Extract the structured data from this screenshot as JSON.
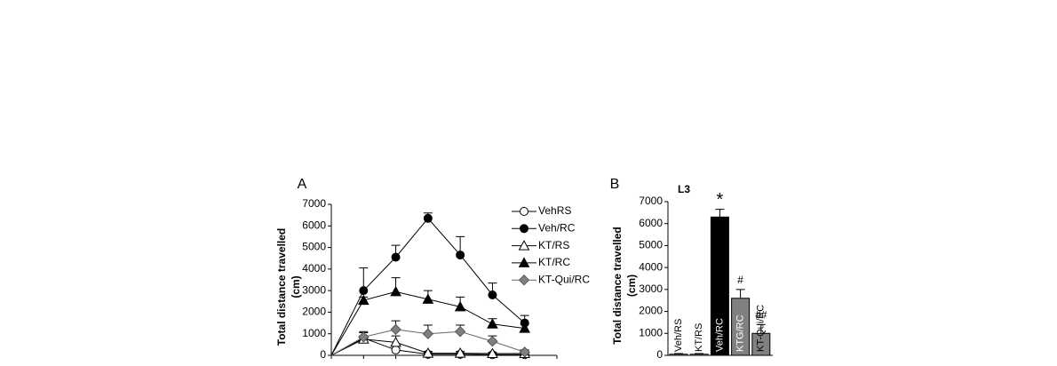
{
  "chart_data": [
    {
      "type": "line",
      "panel_label": "A",
      "ylabel": [
        "Total distance travelled",
        "(cm)"
      ],
      "categories": [
        null,
        null,
        null,
        null,
        null,
        null,
        null
      ],
      "ylim": [
        0,
        7000
      ],
      "yticks": [
        0,
        1000,
        2000,
        3000,
        4000,
        5000,
        6000,
        7000
      ],
      "series": [
        {
          "name": "VehRS",
          "color": "#000000",
          "marker": "circle",
          "fill": "#ffffff",
          "values": [
            0,
            800,
            250,
            50,
            50,
            30,
            30
          ],
          "errors": [
            150,
            250,
            80,
            80,
            60,
            60,
            50
          ]
        },
        {
          "name": "Veh/RC",
          "color": "#000000",
          "marker": "circle",
          "fill": "#000000",
          "values": [
            0,
            3000,
            4550,
            6350,
            4650,
            2800,
            1500
          ],
          "errors": [
            0,
            1050,
            550,
            250,
            850,
            550,
            350
          ]
        },
        {
          "name": "KT/RS",
          "color": "#000000",
          "marker": "triangle",
          "fill": "#ffffff",
          "values": [
            0,
            750,
            600,
            100,
            100,
            80,
            80
          ],
          "errors": [
            0,
            150,
            300,
            80,
            80,
            60,
            60
          ]
        },
        {
          "name": "KT/RC",
          "color": "#000000",
          "marker": "triangle",
          "fill": "#000000",
          "values": [
            0,
            2550,
            2950,
            2600,
            2250,
            1450,
            1250
          ],
          "errors": [
            0,
            150,
            650,
            400,
            450,
            250,
            200
          ]
        },
        {
          "name": "KT-Qui/RC",
          "color": "#808080",
          "marker": "diamond",
          "fill": "#808080",
          "values": [
            0,
            850,
            1200,
            1000,
            1100,
            650,
            150
          ],
          "errors": [
            0,
            250,
            400,
            400,
            300,
            250,
            100
          ]
        }
      ]
    },
    {
      "type": "bar",
      "panel_label": "B",
      "title": "L3",
      "ylabel": [
        "Total distance travelled",
        "(cm)"
      ],
      "categories": [
        "Veh/RS",
        "KT/RS",
        "Veh/RC",
        "KTG/RC",
        "KT-Qui/RC"
      ],
      "values": [
        50,
        50,
        6300,
        2600,
        1000
      ],
      "errors": [
        30,
        30,
        350,
        400,
        400
      ],
      "colors": [
        "#ffffff",
        "#ffffff",
        "#000000",
        "#808080",
        "#808080"
      ],
      "label_colors": [
        "#000000",
        "#000000",
        "#ffffff",
        "#ffffff",
        "#000000"
      ],
      "annotations": [
        null,
        null,
        "*",
        "#",
        "##"
      ],
      "ylim": [
        0,
        7000
      ],
      "yticks": [
        0,
        1000,
        2000,
        3000,
        4000,
        5000,
        6000,
        7000
      ]
    }
  ]
}
